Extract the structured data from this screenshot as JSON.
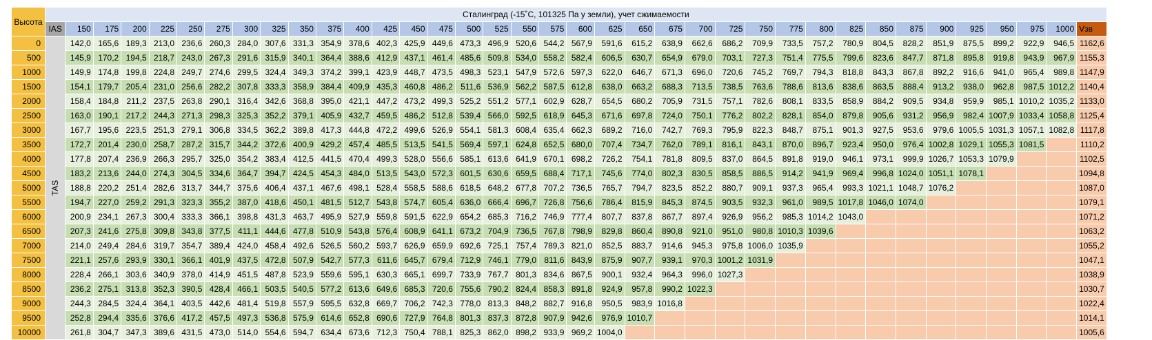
{
  "headers": {
    "altitude": "Высота",
    "ias": "IAS",
    "title": "Сталинград (-15˚С, 101325 Па у земли), учет сжимаемости",
    "vzv": "Vзв",
    "tas": "TAS"
  },
  "speeds": [
    "150",
    "175",
    "200",
    "225",
    "250",
    "275",
    "300",
    "325",
    "350",
    "375",
    "400",
    "425",
    "450",
    "475",
    "500",
    "525",
    "550",
    "575",
    "600",
    "625",
    "650",
    "675",
    "700",
    "725",
    "750",
    "775",
    "800",
    "825",
    "850",
    "875",
    "900",
    "925",
    "950",
    "975",
    "1000"
  ],
  "rows": [
    {
      "alt": "0",
      "vals": [
        "142,0",
        "165,6",
        "189,3",
        "213,0",
        "236,6",
        "260,3",
        "284,0",
        "307,6",
        "331,3",
        "354,9",
        "378,6",
        "402,3",
        "425,9",
        "449,6",
        "473,3",
        "496,9",
        "520,6",
        "544,2",
        "567,9",
        "591,6",
        "615,2",
        "638,9",
        "662,6",
        "686,2",
        "709,9",
        "733,5",
        "757,2",
        "780,9",
        "804,5",
        "828,2",
        "851,9",
        "875,5",
        "899,2",
        "922,9",
        "946,5"
      ],
      "vzv": "1162,6"
    },
    {
      "alt": "500",
      "vals": [
        "145,9",
        "170,2",
        "194,5",
        "218,7",
        "243,0",
        "267,3",
        "291,6",
        "315,9",
        "340,1",
        "364,4",
        "388,6",
        "412,9",
        "437,1",
        "461,4",
        "485,6",
        "509,8",
        "534,0",
        "558,2",
        "582,4",
        "606,5",
        "630,7",
        "654,9",
        "679,0",
        "703,1",
        "727,3",
        "751,4",
        "775,5",
        "799,6",
        "823,6",
        "847,7",
        "871,8",
        "895,8",
        "919,8",
        "943,9",
        "967,9"
      ],
      "vzv": "1155,3"
    },
    {
      "alt": "1000",
      "vals": [
        "149,9",
        "174,8",
        "199,8",
        "224,8",
        "249,7",
        "274,6",
        "299,5",
        "324,4",
        "349,3",
        "374,2",
        "399,1",
        "423,9",
        "448,7",
        "473,5",
        "498,3",
        "523,1",
        "547,9",
        "572,6",
        "597,3",
        "622,0",
        "646,7",
        "671,3",
        "696,0",
        "720,6",
        "745,2",
        "769,7",
        "794,3",
        "818,8",
        "843,3",
        "867,8",
        "892,2",
        "916,6",
        "941,0",
        "965,4",
        "989,8"
      ],
      "vzv": "1147,9"
    },
    {
      "alt": "1500",
      "vals": [
        "154,1",
        "179,7",
        "205,4",
        "231,0",
        "256,6",
        "282,2",
        "307,8",
        "333,3",
        "358,9",
        "384,4",
        "409,9",
        "435,3",
        "460,8",
        "486,2",
        "511,6",
        "536,9",
        "562,2",
        "587,5",
        "612,8",
        "638,0",
        "663,2",
        "688,3",
        "713,5",
        "738,5",
        "763,6",
        "788,6",
        "813,6",
        "838,6",
        "863,5",
        "888,4",
        "913,2",
        "938,0",
        "962,8",
        "987,5",
        "1012,2"
      ],
      "vzv": "1140,4"
    },
    {
      "alt": "2000",
      "vals": [
        "158,4",
        "184,8",
        "211,2",
        "237,5",
        "263,8",
        "290,1",
        "316,4",
        "342,6",
        "368,8",
        "395,0",
        "421,1",
        "447,2",
        "473,2",
        "499,3",
        "525,2",
        "551,2",
        "577,1",
        "602,9",
        "628,7",
        "654,5",
        "680,2",
        "705,9",
        "731,5",
        "757,1",
        "782,6",
        "808,1",
        "833,5",
        "858,9",
        "884,2",
        "909,5",
        "934,8",
        "959,9",
        "985,1",
        "1010,2",
        "1035,2"
      ],
      "vzv": "1133,0"
    },
    {
      "alt": "2500",
      "vals": [
        "163,0",
        "190,1",
        "217,2",
        "244,3",
        "271,3",
        "298,3",
        "325,3",
        "352,2",
        "379,1",
        "405,9",
        "432,7",
        "459,5",
        "486,2",
        "512,8",
        "539,4",
        "566,0",
        "592,5",
        "618,9",
        "645,3",
        "671,6",
        "697,8",
        "724,0",
        "750,1",
        "776,2",
        "802,2",
        "828,1",
        "854,0",
        "879,8",
        "905,6",
        "931,2",
        "956,9",
        "982,4",
        "1007,9",
        "1033,4",
        "1058,8"
      ],
      "vzv": "1125,4"
    },
    {
      "alt": "3000",
      "vals": [
        "167,7",
        "195,6",
        "223,5",
        "251,3",
        "279,1",
        "306,8",
        "334,5",
        "362,2",
        "389,8",
        "417,3",
        "444,8",
        "472,2",
        "499,6",
        "526,9",
        "554,1",
        "581,3",
        "608,4",
        "635,4",
        "662,3",
        "689,2",
        "716,0",
        "742,7",
        "769,3",
        "795,9",
        "822,3",
        "848,7",
        "875,1",
        "901,3",
        "927,5",
        "953,6",
        "979,6",
        "1005,5",
        "1031,3",
        "1057,1",
        "1082,8"
      ],
      "vzv": "1117,8"
    },
    {
      "alt": "3500",
      "vals": [
        "172,7",
        "201,4",
        "230,0",
        "258,7",
        "287,2",
        "315,7",
        "344,2",
        "372,6",
        "400,9",
        "429,2",
        "457,4",
        "485,5",
        "513,5",
        "541,5",
        "569,4",
        "597,1",
        "624,8",
        "652,5",
        "680,0",
        "707,4",
        "734,7",
        "762,0",
        "789,1",
        "816,1",
        "843,1",
        "870,0",
        "896,7",
        "923,4",
        "950,0",
        "976,4",
        "1002,8",
        "1029,1",
        "1055,3",
        "1081,5",
        ""
      ],
      "vzv": "1110,2"
    },
    {
      "alt": "4000",
      "vals": [
        "177,8",
        "207,4",
        "236,9",
        "266,3",
        "295,7",
        "325,0",
        "354,2",
        "383,4",
        "412,5",
        "441,5",
        "470,4",
        "499,3",
        "528,0",
        "556,6",
        "585,1",
        "613,6",
        "641,9",
        "670,1",
        "698,2",
        "726,2",
        "754,1",
        "781,8",
        "809,5",
        "837,0",
        "864,5",
        "891,8",
        "919,0",
        "946,1",
        "973,1",
        "999,9",
        "1026,7",
        "1053,3",
        "1079,9",
        "",
        ""
      ],
      "vzv": "1102,5"
    },
    {
      "alt": "4500",
      "vals": [
        "183,2",
        "213,6",
        "244,0",
        "274,3",
        "304,5",
        "334,6",
        "364,7",
        "394,7",
        "424,5",
        "454,3",
        "484,0",
        "513,5",
        "543,0",
        "572,3",
        "601,5",
        "630,6",
        "659,5",
        "688,4",
        "717,1",
        "745,6",
        "774,0",
        "802,3",
        "830,5",
        "858,5",
        "886,5",
        "914,2",
        "941,9",
        "969,4",
        "996,8",
        "1024,0",
        "1051,1",
        "1078,1",
        "",
        "",
        ""
      ],
      "vzv": "1094,8"
    },
    {
      "alt": "5000",
      "vals": [
        "188,8",
        "220,2",
        "251,4",
        "282,6",
        "313,7",
        "344,7",
        "375,6",
        "406,4",
        "437,1",
        "467,6",
        "498,1",
        "528,4",
        "558,5",
        "588,6",
        "618,5",
        "648,2",
        "677,8",
        "707,2",
        "736,5",
        "765,7",
        "794,7",
        "823,5",
        "852,2",
        "880,7",
        "909,1",
        "937,3",
        "965,4",
        "993,3",
        "1021,1",
        "1048,7",
        "1076,2",
        "",
        "",
        "",
        ""
      ],
      "vzv": "1087,0"
    },
    {
      "alt": "5500",
      "vals": [
        "194,7",
        "227,0",
        "259,2",
        "291,3",
        "323,3",
        "355,2",
        "387,0",
        "418,6",
        "450,1",
        "481,5",
        "512,7",
        "543,8",
        "574,7",
        "605,4",
        "636,0",
        "666,4",
        "696,7",
        "726,8",
        "756,6",
        "786,4",
        "815,9",
        "845,3",
        "874,5",
        "903,5",
        "932,3",
        "961,0",
        "989,5",
        "1017,8",
        "1046,0",
        "1074,0",
        "",
        "",
        "",
        "",
        ""
      ],
      "vzv": "1079,1"
    },
    {
      "alt": "6000",
      "vals": [
        "200,9",
        "234,1",
        "267,3",
        "300,4",
        "333,3",
        "366,1",
        "398,8",
        "431,3",
        "463,7",
        "495,9",
        "527,9",
        "559,8",
        "591,5",
        "622,9",
        "654,2",
        "685,3",
        "716,2",
        "746,9",
        "777,4",
        "807,7",
        "837,8",
        "867,7",
        "897,4",
        "926,9",
        "956,2",
        "985,3",
        "1014,2",
        "1043,0",
        "",
        "",
        "",
        "",
        "",
        "",
        ""
      ],
      "vzv": "1071,2"
    },
    {
      "alt": "6500",
      "vals": [
        "207,3",
        "241,6",
        "275,8",
        "309,8",
        "343,8",
        "377,5",
        "411,1",
        "444,6",
        "477,8",
        "510,9",
        "543,8",
        "576,4",
        "608,9",
        "641,1",
        "673,2",
        "704,9",
        "736,5",
        "767,8",
        "798,9",
        "829,8",
        "860,4",
        "890,8",
        "921,0",
        "951,0",
        "980,8",
        "1010,3",
        "1039,6",
        "",
        "",
        "",
        "",
        "",
        "",
        "",
        ""
      ],
      "vzv": "1063,2"
    },
    {
      "alt": "7000",
      "vals": [
        "214,0",
        "249,4",
        "284,6",
        "319,7",
        "354,7",
        "389,4",
        "424,0",
        "458,4",
        "492,6",
        "526,5",
        "560,2",
        "593,7",
        "626,9",
        "659,9",
        "692,6",
        "725,1",
        "757,4",
        "789,3",
        "821,0",
        "852,5",
        "883,7",
        "914,6",
        "945,3",
        "975,8",
        "1006,0",
        "1035,9",
        "",
        "",
        "",
        "",
        "",
        "",
        "",
        "",
        ""
      ],
      "vzv": "1055,2"
    },
    {
      "alt": "7500",
      "vals": [
        "221,1",
        "257,6",
        "293,9",
        "330,1",
        "366,1",
        "401,9",
        "437,5",
        "472,8",
        "507,9",
        "542,7",
        "577,3",
        "611,6",
        "645,7",
        "679,4",
        "712,9",
        "746,1",
        "779,0",
        "811,6",
        "843,9",
        "875,9",
        "907,7",
        "939,1",
        "970,3",
        "1001,2",
        "1031,9",
        "",
        "",
        "",
        "",
        "",
        "",
        "",
        "",
        "",
        ""
      ],
      "vzv": "1047,1"
    },
    {
      "alt": "8000",
      "vals": [
        "228,4",
        "266,1",
        "303,6",
        "340,9",
        "378,0",
        "414,9",
        "451,5",
        "487,8",
        "523,9",
        "559,6",
        "595,1",
        "630,3",
        "665,1",
        "699,7",
        "733,9",
        "767,7",
        "801,3",
        "834,6",
        "867,5",
        "900,1",
        "932,4",
        "964,3",
        "996,0",
        "1027,3",
        "",
        "",
        "",
        "",
        "",
        "",
        "",
        "",
        "",
        "",
        ""
      ],
      "vzv": "1038,9"
    },
    {
      "alt": "8500",
      "vals": [
        "236,2",
        "275,1",
        "313,8",
        "352,3",
        "390,5",
        "428,4",
        "466,1",
        "503,5",
        "540,5",
        "577,2",
        "613,6",
        "649,6",
        "685,3",
        "720,6",
        "755,6",
        "790,2",
        "824,4",
        "858,3",
        "891,8",
        "924,9",
        "957,8",
        "990,2",
        "1022,3",
        "",
        "",
        "",
        "",
        "",
        "",
        "",
        "",
        "",
        "",
        "",
        ""
      ],
      "vzv": "1030,7"
    },
    {
      "alt": "9000",
      "vals": [
        "244,3",
        "284,5",
        "324,4",
        "364,1",
        "403,5",
        "442,6",
        "481,4",
        "519,8",
        "557,9",
        "595,5",
        "632,8",
        "669,7",
        "706,2",
        "742,3",
        "778,0",
        "813,3",
        "848,2",
        "882,7",
        "916,8",
        "950,5",
        "983,9",
        "1016,8",
        "",
        "",
        "",
        "",
        "",
        "",
        "",
        "",
        "",
        "",
        "",
        "",
        ""
      ],
      "vzv": "1022,4"
    },
    {
      "alt": "9500",
      "vals": [
        "252,8",
        "294,4",
        "335,6",
        "376,6",
        "417,2",
        "457,5",
        "497,3",
        "536,8",
        "575,9",
        "614,6",
        "652,8",
        "690,6",
        "727,9",
        "764,8",
        "801,3",
        "837,3",
        "872,8",
        "907,9",
        "942,6",
        "976,9",
        "1010,7",
        "",
        "",
        "",
        "",
        "",
        "",
        "",
        "",
        "",
        "",
        "",
        "",
        "",
        ""
      ],
      "vzv": "1014,1"
    },
    {
      "alt": "10000",
      "vals": [
        "261,8",
        "304,7",
        "347,3",
        "389,6",
        "431,5",
        "473,0",
        "514,0",
        "554,6",
        "594,7",
        "634,4",
        "673,6",
        "712,3",
        "750,4",
        "788,1",
        "825,3",
        "862,0",
        "898,2",
        "933,9",
        "969,2",
        "1004,0",
        "",
        "",
        "",
        "",
        "",
        "",
        "",
        "",
        "",
        "",
        "",
        "",
        "",
        "",
        ""
      ],
      "vzv": "1005,6"
    }
  ]
}
